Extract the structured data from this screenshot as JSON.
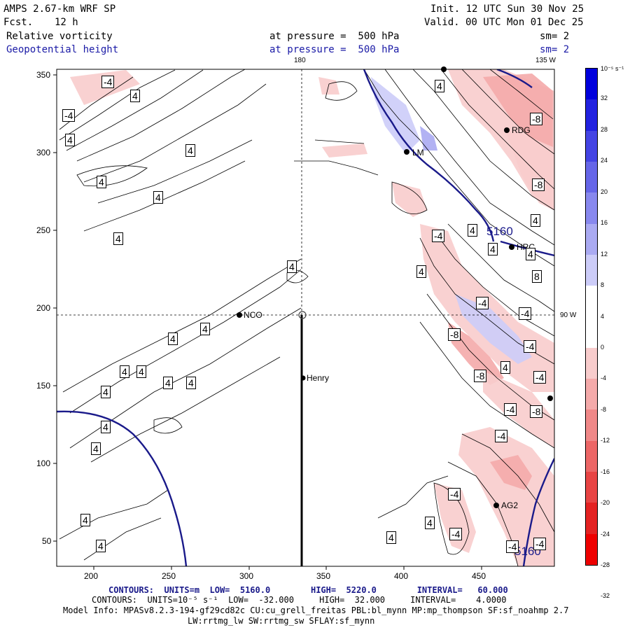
{
  "header": {
    "model": "AMPS 2.67-km WRF SP",
    "fcst_label": "Fcst.",
    "fcst_value": "12 h",
    "init": "Init. 12 UTC Sun 30 Nov 25",
    "valid": "Valid. 00 UTC Mon 01 Dec 25",
    "field1_name": "Relative vorticity",
    "field1_level": "at pressure =  500 hPa",
    "field1_sm": "sm= 2",
    "field2_name": "Geopotential height",
    "field2_level": "at pressure =  500 hPa",
    "field2_sm": "sm= 2"
  },
  "map": {
    "lon_180_label": "180",
    "lon_135w_label": "135 W",
    "lat_90w_label": "90 W",
    "x_ticks": [
      "200",
      "250",
      "300",
      "350",
      "400",
      "450"
    ],
    "y_ticks": [
      "350",
      "300",
      "250",
      "200",
      "150",
      "100",
      "50"
    ],
    "stations": [
      {
        "id": "nco",
        "name": "NCO"
      },
      {
        "id": "henry",
        "name": "Henry"
      },
      {
        "id": "rdg",
        "name": "RDG"
      },
      {
        "id": "lm",
        "name": "LM"
      },
      {
        "id": "hrc",
        "name": "HRC"
      },
      {
        "id": "ag2",
        "name": "AG2"
      }
    ],
    "height_contour_label": "5160",
    "height_contour_label2": "5160",
    "contour_labels": {
      "pos4": "4",
      "neg4": "-4",
      "pos8": "8",
      "neg8": "-8"
    }
  },
  "colorbar": {
    "unit": "10⁻⁵ s⁻¹",
    "labels": [
      "32",
      "28",
      "24",
      "20",
      "16",
      "12",
      "8",
      "4",
      "0",
      "-4",
      "-8",
      "-12",
      "-16",
      "-20",
      "-24",
      "-28",
      "-32"
    ],
    "colors": [
      "#0000dd",
      "#2222e0",
      "#4444e4",
      "#6666e8",
      "#8888ee",
      "#aaaaf2",
      "#ccccf8",
      "#ffffff",
      "#ffffff",
      "#f8cccc",
      "#f4aaaa",
      "#f08888",
      "#ec6666",
      "#e84444",
      "#e42222",
      "#ee0000"
    ]
  },
  "footer": {
    "line1": "CONTOURS:  UNITS=m  LOW=  5160.0        HIGH=  5220.0        INTERVAL=   60.000",
    "line2": "CONTOURS:  UNITS=10⁻⁵ s⁻¹  LOW=  -32.000     HIGH=  32.000     INTERVAL=    4.0000",
    "line3": "Model Info: MPASv8.2.3-194-gf29cd82c CU:cu_grell_freitas PBL:bl_mynn MP:mp_thompson SF:sf_noahmp 2.7",
    "line4": "LW:rrtmg_lw SW:rrtmg_sw SFLAY:sf_mynn"
  }
}
